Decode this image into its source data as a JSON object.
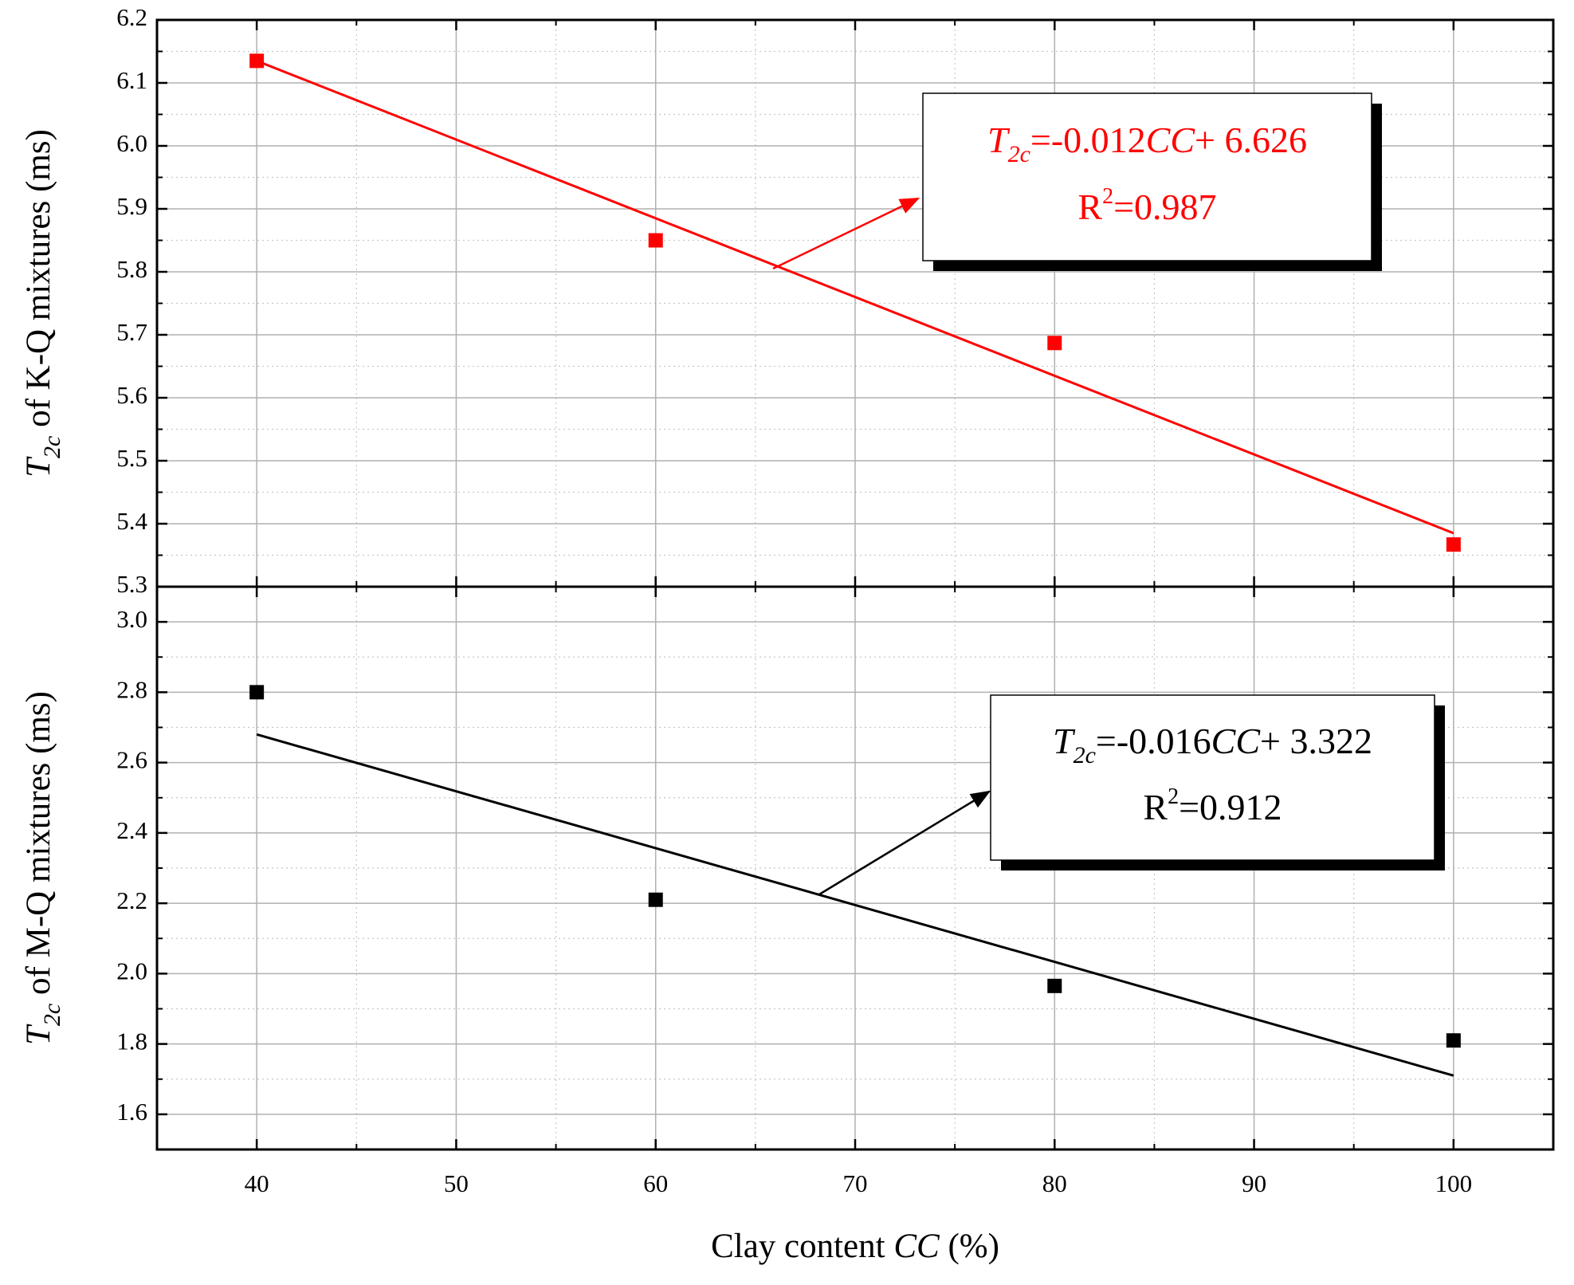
{
  "chart_data": [
    {
      "type": "scatter",
      "ylabel": [
        "T",
        "2c",
        " of K-Q mixtures (ms)"
      ],
      "x": [
        40,
        60,
        80,
        100
      ],
      "series": [
        {
          "color": "#ff0000",
          "values": [
            6.135,
            5.85,
            5.687,
            5.367
          ]
        }
      ],
      "fit": {
        "x": [
          40,
          100
        ],
        "values": [
          6.135,
          5.385
        ],
        "color": "#ff0000"
      },
      "annotation": {
        "equation": [
          "T",
          "2c",
          "=-0.012",
          "CC",
          "+ 6.626"
        ],
        "r2": [
          "R",
          "2",
          "=0.987"
        ]
      },
      "xlim": [
        35,
        105
      ],
      "xticks": [
        40,
        50,
        60,
        70,
        80,
        90,
        100
      ],
      "ylim": [
        5.3,
        6.2
      ],
      "yticks": [
        5.3,
        5.4,
        5.5,
        5.6,
        5.7,
        5.8,
        5.9,
        {
          "value": 6,
          "label": "6.0"
        },
        6.1,
        6.2
      ],
      "grid": true
    },
    {
      "type": "scatter",
      "ylabel": [
        "T",
        "2c",
        " of M-Q mixtures (ms)"
      ],
      "xlabel": [
        "Clay content ",
        "CC",
        " (%)"
      ],
      "x": [
        40,
        60,
        80,
        100
      ],
      "series": [
        {
          "color": "#000000",
          "values": [
            2.8,
            2.21,
            1.965,
            1.81
          ]
        }
      ],
      "fit": {
        "x": [
          40,
          100
        ],
        "values": [
          2.68,
          1.71
        ],
        "color": "#000000"
      },
      "annotation": {
        "equation": [
          "T",
          "2c",
          "=-0.016",
          "CC",
          "+ 3.322"
        ],
        "r2": [
          "R",
          "2",
          "=0.912"
        ]
      },
      "xlim": [
        35,
        105
      ],
      "xticks": [
        40,
        50,
        60,
        70,
        80,
        90,
        100
      ],
      "ylim": [
        1.5,
        3.1
      ],
      "yticks": [
        1.6,
        1.8,
        {
          "value": 2,
          "label": "2.0"
        },
        2.2,
        2.4,
        2.6,
        2.8,
        {
          "value": 3,
          "label": "3.0"
        }
      ],
      "grid": true
    }
  ]
}
